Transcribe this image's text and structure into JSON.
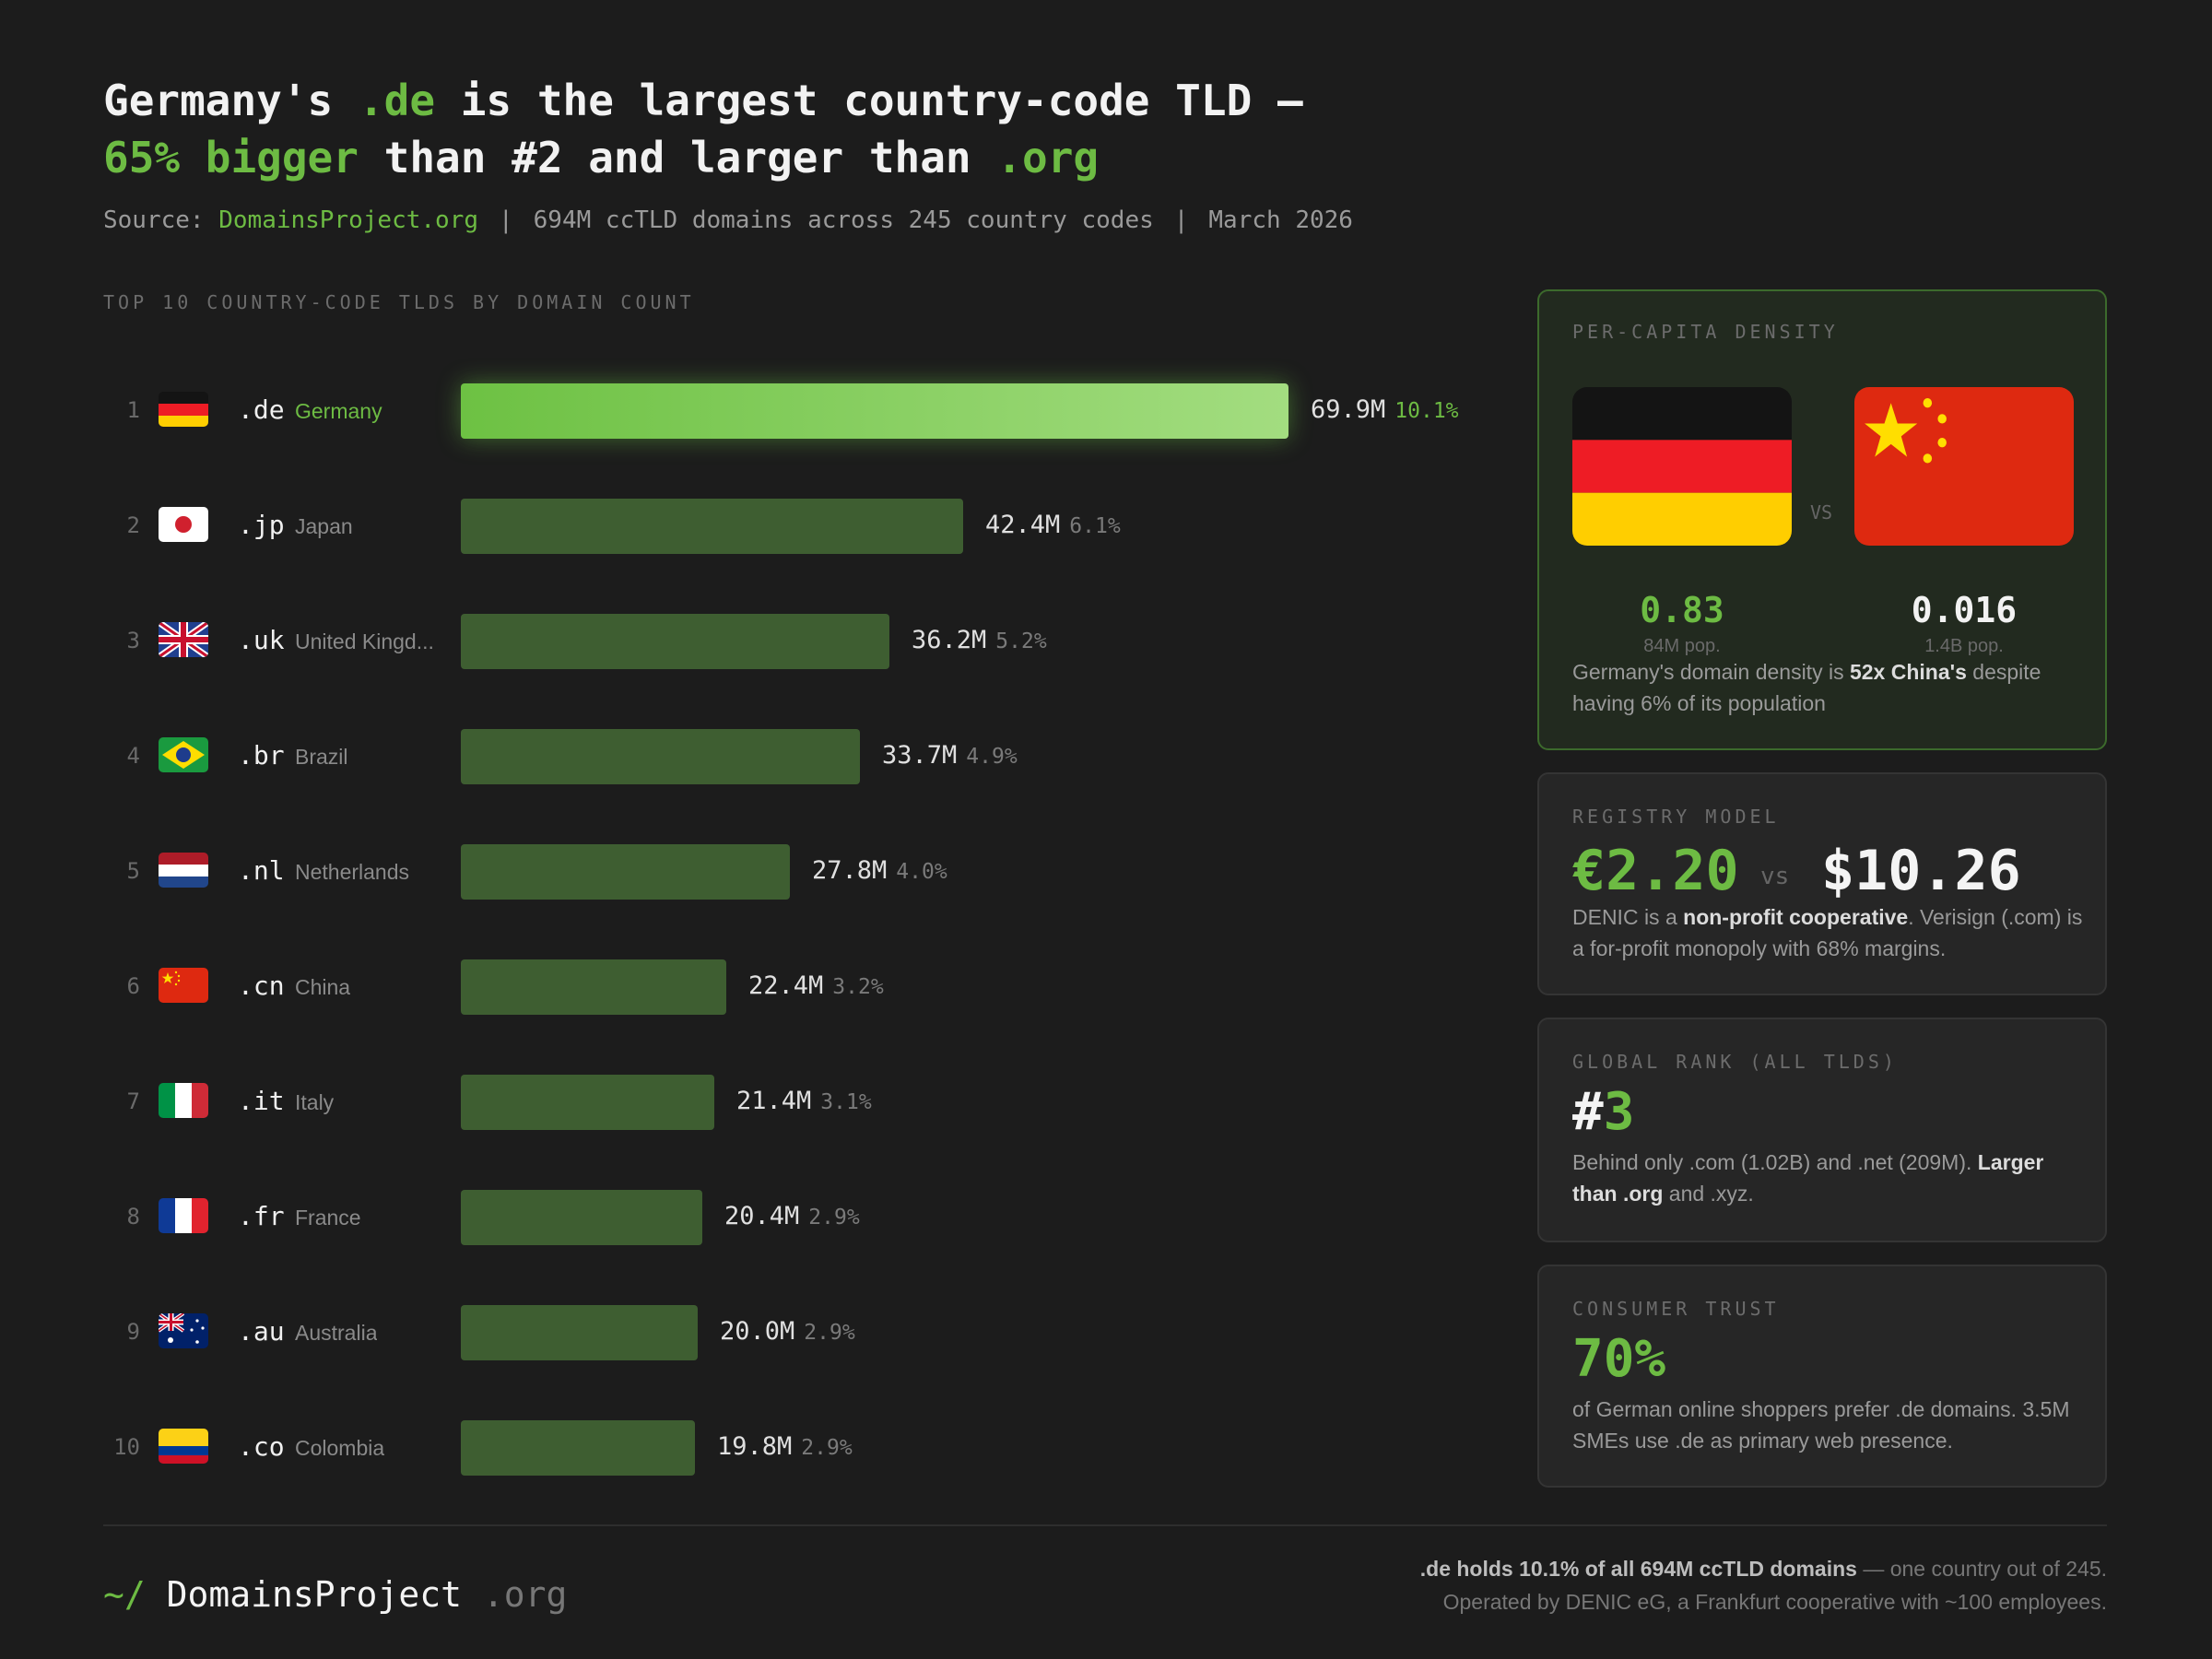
{
  "header": {
    "title_part1": "Germany's ",
    "title_de": ".de",
    "title_part2": " is the largest country-code TLD —",
    "title_green": "65% bigger",
    "title_part3": " than #2 and larger than ",
    "title_org": ".org",
    "source_label": "Source: ",
    "source_link": "DomainsProject.org",
    "separator": "|",
    "stat": "694M ccTLD domains across 245 country codes",
    "date": "March 2026"
  },
  "section_label": "TOP 10 COUNTRY-CODE TLDS BY DOMAIN COUNT",
  "chart_data": {
    "type": "bar",
    "orientation": "horizontal",
    "title": "TOP 10 COUNTRY-CODE TLDS BY DOMAIN COUNT",
    "unit": "M",
    "categories": [
      ".de",
      ".jp",
      ".uk",
      ".br",
      ".nl",
      ".cn",
      ".it",
      ".fr",
      ".au",
      ".co"
    ],
    "rows": [
      {
        "rank": "1",
        "tld": ".de",
        "country": "Germany",
        "flag": "germany-flag",
        "value": 69.9,
        "label": "69.9M",
        "pct": "10.1%"
      },
      {
        "rank": "2",
        "tld": ".jp",
        "country": "Japan",
        "flag": "japan-flag",
        "value": 42.4,
        "label": "42.4M",
        "pct": "6.1%"
      },
      {
        "rank": "3",
        "tld": ".uk",
        "country": "United Kingd...",
        "flag": "uk-flag",
        "value": 36.2,
        "label": "36.2M",
        "pct": "5.2%"
      },
      {
        "rank": "4",
        "tld": ".br",
        "country": "Brazil",
        "flag": "brazil-flag",
        "value": 33.7,
        "label": "33.7M",
        "pct": "4.9%"
      },
      {
        "rank": "5",
        "tld": ".nl",
        "country": "Netherlands",
        "flag": "netherlands-flag",
        "value": 27.8,
        "label": "27.8M",
        "pct": "4.0%"
      },
      {
        "rank": "6",
        "tld": ".cn",
        "country": "China",
        "flag": "china-flag",
        "value": 22.4,
        "label": "22.4M",
        "pct": "3.2%"
      },
      {
        "rank": "7",
        "tld": ".it",
        "country": "Italy",
        "flag": "italy-flag",
        "value": 21.4,
        "label": "21.4M",
        "pct": "3.1%"
      },
      {
        "rank": "8",
        "tld": ".fr",
        "country": "France",
        "flag": "france-flag",
        "value": 20.4,
        "label": "20.4M",
        "pct": "2.9%"
      },
      {
        "rank": "9",
        "tld": ".au",
        "country": "Australia",
        "flag": "australia-flag",
        "value": 20.0,
        "label": "20.0M",
        "pct": "2.9%"
      },
      {
        "rank": "10",
        "tld": ".co",
        "country": "Colombia",
        "flag": "colombia-flag",
        "value": 19.8,
        "label": "19.8M",
        "pct": "2.9%"
      }
    ],
    "xlim": [
      0,
      69.9
    ],
    "highlight_color": "#6dbb43",
    "bar_color": "#3e5e31"
  },
  "cards": {
    "density": {
      "label": "PER-CAPITA DENSITY",
      "vs": "VS",
      "de_value": "0.83",
      "de_pop": "84M pop.",
      "cn_value": "0.016",
      "cn_pop": "1.4B pop.",
      "text_1": "Germany's domain density is ",
      "text_bold": "52x China's",
      "text_2": " despite having 6% of its population"
    },
    "registry": {
      "label": "REGISTRY MODEL",
      "eur": "€2.20",
      "vs": "vs",
      "usd": "$10.26",
      "text_1": "DENIC is a ",
      "text_bold": "non-profit cooperative",
      "text_2": ". Verisign (.com) is a for-profit monopoly with 68% margins."
    },
    "rank": {
      "label": "GLOBAL RANK (ALL TLDS)",
      "hash": "#",
      "number": "3",
      "text_1": "Behind only .com (1.02B) and .net (209M). ",
      "text_bold": "Larger than .org",
      "text_2": " and .xyz."
    },
    "trust": {
      "label": "CONSUMER TRUST",
      "value": "70%",
      "text": "of German online shoppers prefer .de domains. 3.5M SMEs use .de as primary web presence."
    }
  },
  "footer": {
    "logo_prefix": "~/",
    "logo_name": "DomainsProject",
    "logo_suffix": ".org",
    "note_bold": ".de holds 10.1% of all 694M ccTLD domains",
    "note_1": " — one country out of 245.",
    "note_2": "Operated by DENIC eG, a Frankfurt cooperative with ~100 employees."
  },
  "colors": {
    "accent": "#6dbb43",
    "background": "#1c1c1c",
    "card": "#262626"
  }
}
